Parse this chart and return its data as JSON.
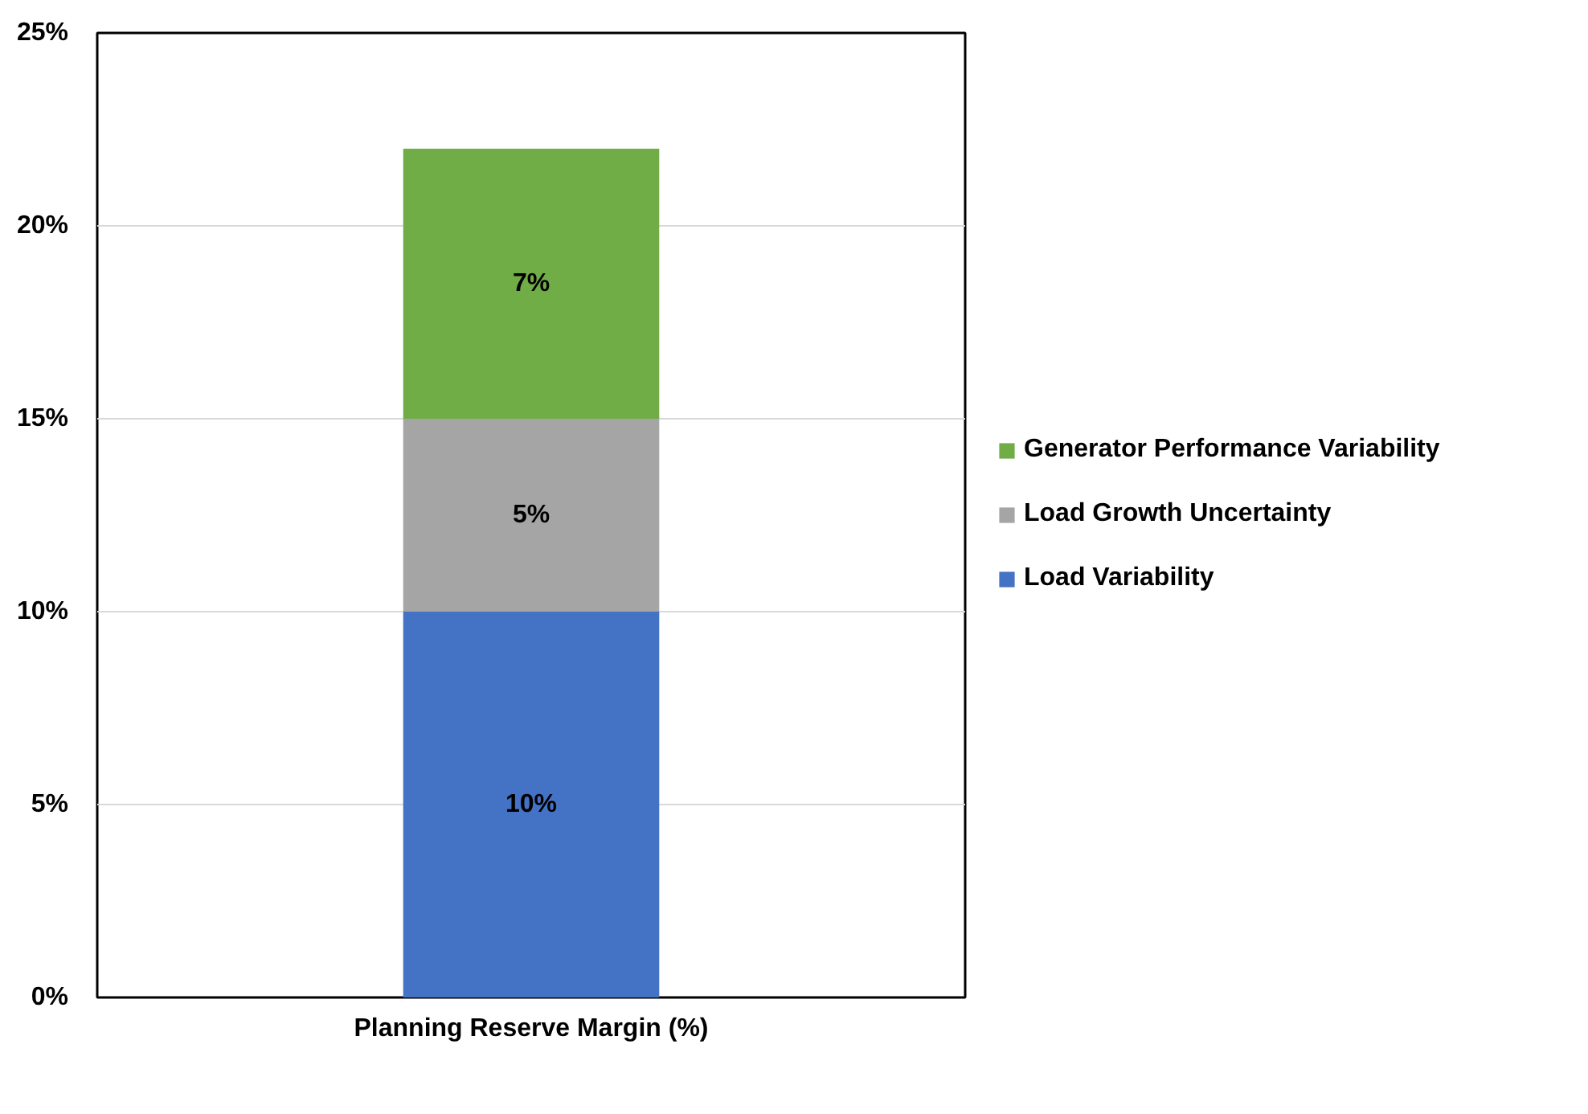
{
  "chart_data": {
    "type": "bar",
    "stacked": true,
    "categories": [
      "Planning Reserve Margin (%)"
    ],
    "series": [
      {
        "name": "Load Variability",
        "color": "#4472c4",
        "values": [
          10
        ],
        "value_labels": [
          "10%"
        ]
      },
      {
        "name": "Load Growth Uncertainty",
        "color": "#a5a5a5",
        "values": [
          5
        ],
        "value_labels": [
          "5%"
        ]
      },
      {
        "name": "Generator Performance Variability",
        "color": "#70ad47",
        "values": [
          7
        ],
        "value_labels": [
          "7%"
        ]
      }
    ],
    "ylim": [
      0,
      25
    ],
    "yticks": [
      {
        "value": 0,
        "label": "0%"
      },
      {
        "value": 5,
        "label": "5%"
      },
      {
        "value": 10,
        "label": "10%"
      },
      {
        "value": 15,
        "label": "15%"
      },
      {
        "value": 20,
        "label": "20%"
      },
      {
        "value": 25,
        "label": "25%"
      }
    ],
    "grid": "y",
    "legend": "right"
  }
}
